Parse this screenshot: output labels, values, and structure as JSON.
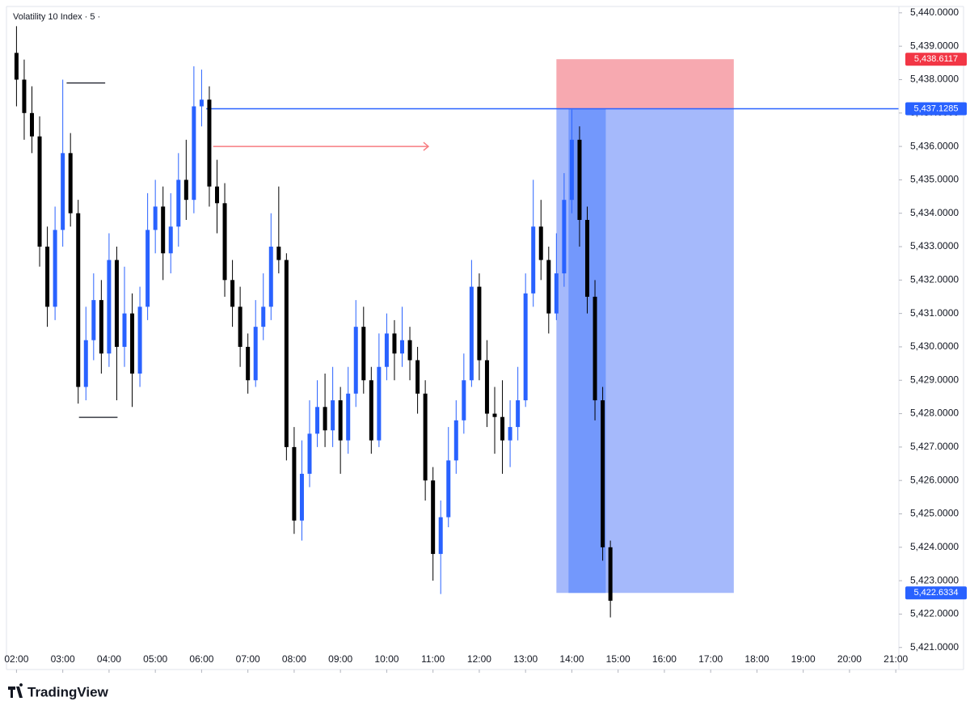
{
  "chart_data": {
    "type": "candlestick",
    "title": "Volatility 10 Index · 5 ·",
    "up_color": "#2962ff",
    "down_color": "#000000",
    "grid": false,
    "xlim": [
      107,
      1264
    ],
    "ylim": [
      5420.34,
      5440.19
    ],
    "xticks": [
      {
        "value": 120,
        "label": "02:00"
      },
      {
        "value": 180,
        "label": "03:00"
      },
      {
        "value": 240,
        "label": "04:00"
      },
      {
        "value": 300,
        "label": "05:00"
      },
      {
        "value": 360,
        "label": "06:00"
      },
      {
        "value": 420,
        "label": "07:00"
      },
      {
        "value": 480,
        "label": "08:00"
      },
      {
        "value": 540,
        "label": "09:00"
      },
      {
        "value": 600,
        "label": "10:00"
      },
      {
        "value": 660,
        "label": "11:00"
      },
      {
        "value": 720,
        "label": "12:00"
      },
      {
        "value": 780,
        "label": "13:00"
      },
      {
        "value": 840,
        "label": "14:00"
      },
      {
        "value": 900,
        "label": "15:00"
      },
      {
        "value": 960,
        "label": "16:00"
      },
      {
        "value": 1020,
        "label": "17:00"
      },
      {
        "value": 1080,
        "label": "18:00"
      },
      {
        "value": 1140,
        "label": "19:00"
      },
      {
        "value": 1200,
        "label": "20:00"
      },
      {
        "value": 1260,
        "label": "21:00"
      }
    ],
    "yticks": [
      {
        "value": 5421,
        "label": "5,421.0000"
      },
      {
        "value": 5422,
        "label": "5,422.0000"
      },
      {
        "value": 5423,
        "label": "5,423.0000"
      },
      {
        "value": 5424,
        "label": "5,424.0000"
      },
      {
        "value": 5425,
        "label": "5,425.0000"
      },
      {
        "value": 5426,
        "label": "5,426.0000"
      },
      {
        "value": 5427,
        "label": "5,427.0000"
      },
      {
        "value": 5428,
        "label": "5,428.0000"
      },
      {
        "value": 5429,
        "label": "5,429.0000"
      },
      {
        "value": 5430,
        "label": "5,430.0000"
      },
      {
        "value": 5431,
        "label": "5,431.0000"
      },
      {
        "value": 5432,
        "label": "5,432.0000"
      },
      {
        "value": 5433,
        "label": "5,433.0000"
      },
      {
        "value": 5434,
        "label": "5,434.0000"
      },
      {
        "value": 5435,
        "label": "5,435.0000"
      },
      {
        "value": 5436,
        "label": "5,436.0000"
      },
      {
        "value": 5437,
        "label": "5,437.0000"
      },
      {
        "value": 5438,
        "label": "5,438.0000"
      },
      {
        "value": 5439,
        "label": "5,439.0000"
      },
      {
        "value": 5440,
        "label": "5,440.0000"
      }
    ],
    "x": [
      120,
      130,
      140,
      150,
      160,
      170,
      180,
      190,
      200,
      210,
      220,
      230,
      240,
      250,
      260,
      270,
      280,
      290,
      300,
      310,
      320,
      330,
      340,
      350,
      360,
      370,
      380,
      390,
      400,
      410,
      420,
      430,
      440,
      450,
      460,
      470,
      480,
      490,
      500,
      510,
      520,
      530,
      540,
      550,
      560,
      570,
      580,
      590,
      600,
      610,
      620,
      630,
      640,
      650,
      660,
      670,
      680,
      690,
      700,
      710,
      720,
      730,
      740,
      750,
      760,
      770,
      780,
      790,
      800,
      810,
      820,
      830,
      840,
      850,
      860,
      870,
      880,
      890
    ],
    "open": [
      5438.8,
      5438.0,
      5437.0,
      5436.3,
      5433.0,
      5431.2,
      5433.5,
      5435.8,
      5434.0,
      5428.8,
      5430.2,
      5431.4,
      5429.8,
      5432.6,
      5430.0,
      5431.0,
      5429.2,
      5431.2,
      5433.5,
      5434.2,
      5432.8,
      5433.6,
      5435.0,
      5434.4,
      5437.2,
      5437.4,
      5434.8,
      5434.3,
      5432.0,
      5431.2,
      5430.0,
      5429.0,
      5430.6,
      5431.2,
      5433.0,
      5432.6,
      5427.0,
      5424.8,
      5426.2,
      5427.4,
      5428.2,
      5427.5,
      5428.4,
      5427.2,
      5428.6,
      5430.6,
      5429.0,
      5427.2,
      5429.4,
      5430.4,
      5429.8,
      5430.2,
      5429.6,
      5428.6,
      5426.0,
      5423.8,
      5424.9,
      5426.6,
      5427.8,
      5429.0,
      5431.8,
      5429.6,
      5428.0,
      5427.9,
      5427.2,
      5427.6,
      5428.4,
      5431.6,
      5433.6,
      5432.6,
      5431.0,
      5432.2,
      5434.4,
      5436.2,
      5433.8,
      5431.5,
      5428.4,
      5424.0
    ],
    "high": [
      5439.6,
      5438.6,
      5437.8,
      5436.9,
      5433.6,
      5434.2,
      5438.0,
      5436.4,
      5434.4,
      5431.2,
      5432.2,
      5432.0,
      5433.4,
      5433.0,
      5432.4,
      5431.6,
      5431.8,
      5434.6,
      5435.0,
      5434.8,
      5434.6,
      5435.8,
      5436.2,
      5438.4,
      5438.3,
      5437.8,
      5435.6,
      5434.9,
      5432.6,
      5431.8,
      5430.4,
      5431.4,
      5432.2,
      5434.0,
      5434.8,
      5432.8,
      5427.6,
      5427.2,
      5428.4,
      5429.0,
      5429.2,
      5429.4,
      5428.8,
      5429.4,
      5431.4,
      5431.2,
      5429.4,
      5430.4,
      5431.0,
      5430.8,
      5431.2,
      5430.6,
      5430.0,
      5429.0,
      5426.4,
      5425.4,
      5427.6,
      5428.4,
      5429.8,
      5432.6,
      5432.2,
      5430.2,
      5428.8,
      5429.0,
      5428.4,
      5429.4,
      5432.2,
      5435.0,
      5434.4,
      5433.0,
      5433.4,
      5435.2,
      5437.1,
      5436.6,
      5434.2,
      5432.0,
      5428.8,
      5424.2
    ],
    "low": [
      5437.2,
      5436.2,
      5435.8,
      5432.4,
      5430.6,
      5430.8,
      5433.0,
      5433.6,
      5428.3,
      5428.4,
      5429.6,
      5429.2,
      5429.4,
      5428.4,
      5429.4,
      5428.2,
      5428.8,
      5430.8,
      5432.8,
      5432.0,
      5432.2,
      5433.0,
      5433.8,
      5434.0,
      5436.6,
      5434.2,
      5433.4,
      5431.5,
      5430.6,
      5429.4,
      5428.6,
      5428.8,
      5430.2,
      5430.8,
      5432.2,
      5426.6,
      5424.4,
      5424.2,
      5425.8,
      5427.0,
      5427.0,
      5427.0,
      5426.2,
      5426.8,
      5428.2,
      5428.6,
      5426.8,
      5427.0,
      5429.0,
      5429.0,
      5429.4,
      5429.0,
      5428.0,
      5425.4,
      5423.0,
      5422.6,
      5424.6,
      5426.2,
      5427.4,
      5428.8,
      5429.0,
      5427.6,
      5426.8,
      5426.2,
      5426.4,
      5427.2,
      5428.2,
      5431.2,
      5432.0,
      5430.4,
      5430.8,
      5431.8,
      5434.0,
      5433.0,
      5431.0,
      5427.8,
      5423.6,
      5421.9
    ],
    "close": [
      5438.0,
      5437.0,
      5436.3,
      5433.0,
      5431.2,
      5433.5,
      5435.8,
      5434.0,
      5428.8,
      5430.2,
      5431.4,
      5429.8,
      5432.6,
      5430.0,
      5431.0,
      5429.2,
      5431.2,
      5433.5,
      5434.2,
      5432.8,
      5433.6,
      5435.0,
      5434.4,
      5437.2,
      5437.4,
      5434.8,
      5434.3,
      5432.0,
      5431.2,
      5430.0,
      5429.0,
      5430.6,
      5431.2,
      5433.0,
      5432.6,
      5427.0,
      5424.8,
      5426.2,
      5427.4,
      5428.2,
      5427.5,
      5428.4,
      5427.2,
      5428.6,
      5430.6,
      5429.0,
      5427.2,
      5429.4,
      5430.4,
      5429.8,
      5430.2,
      5429.6,
      5428.6,
      5426.0,
      5423.8,
      5424.9,
      5426.6,
      5427.8,
      5429.0,
      5431.8,
      5429.6,
      5428.0,
      5427.9,
      5427.2,
      5427.6,
      5428.4,
      5431.6,
      5433.6,
      5432.6,
      5431.0,
      5432.2,
      5434.4,
      5436.2,
      5433.8,
      5431.5,
      5428.4,
      5424.0,
      5422.4
    ],
    "position": {
      "start": 820,
      "end": 1050,
      "filled_end": 884,
      "stop": 5438.6117,
      "entry": 5437.1285,
      "target": 5422.6334,
      "stop_color": "#f7a9b0",
      "target_color": "#a5b9fb",
      "filled_color": "#7398fc"
    },
    "hlines": [
      {
        "value": 5437.1285,
        "start": 366,
        "color": "#2962ff"
      },
      {
        "value": 5437.9,
        "start": 185,
        "end": 235,
        "color": "#131722"
      },
      {
        "value": 5427.89,
        "start": 201,
        "end": 251,
        "color": "#131722"
      }
    ],
    "arrows": [
      {
        "value": 5436.0,
        "start": 375,
        "end": 654,
        "color": "#f77c80"
      }
    ],
    "price_labels": [
      {
        "value": 5438.6117,
        "label": "5,438.6117",
        "color": "#f23645"
      },
      {
        "value": 5437.1285,
        "label": "5,437.1285",
        "color": "#2962ff"
      },
      {
        "value": 5422.6334,
        "label": "5,422.6334",
        "color": "#2962ff"
      }
    ]
  },
  "footer": {
    "logo": "TradingView"
  }
}
